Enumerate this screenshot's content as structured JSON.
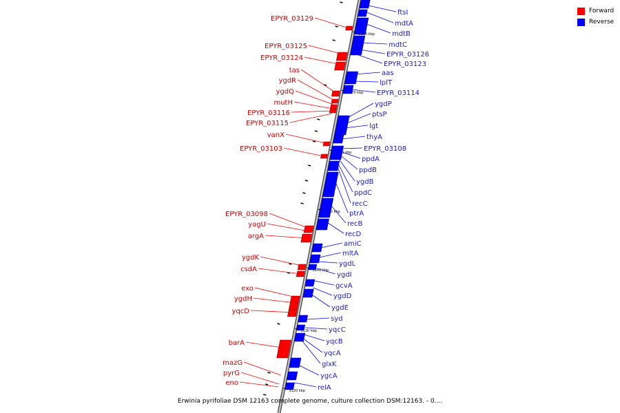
{
  "legend": {
    "forward_label": "Forward",
    "reverse_label": "Reverse",
    "forward_color": "#ff0000",
    "reverse_color": "#0000ff"
  },
  "footer": "Erwinia pyrifoliae DSM 12163 complete genome, culture collection DSM:12163. - 0....",
  "colors": {
    "backbone": "#888888",
    "tick": "#000000",
    "label_forward": "#cc0000",
    "label_reverse": "#1a1acc"
  },
  "kbp_marks": [
    "3180 kbp",
    "3170 kbp",
    "3160 kbp",
    "3150 kbp",
    "3140 kbp",
    "3130 kbp",
    "3120 kbp"
  ],
  "genes": {
    "forward": [
      "EPYR_03129",
      "EPYR_03125",
      "EPYR_03124",
      "tas",
      "ygdR",
      "ygdQ",
      "mutH",
      "EPYR_03116",
      "EPYR_03115",
      "vanX",
      "EPYR_03103",
      "EPYR_03098",
      "yagU",
      "argA",
      "ygdK",
      "csdA",
      "exo",
      "ygdH",
      "yqcD",
      "barA",
      "mazG",
      "pyrG",
      "eno"
    ],
    "reverse": [
      "ftsI",
      "mdtA",
      "mdtB",
      "mdtC",
      "EPYR_03126",
      "EPYR_03123",
      "aas",
      "lplT",
      "EPYR_03114",
      "ygdP",
      "ptsP",
      "lgt",
      "thyA",
      "EPYR_03108",
      "ppdA",
      "ppdB",
      "ygdB",
      "ppdC",
      "recC",
      "ptrA",
      "recB",
      "recD",
      "amiC",
      "mltA",
      "ygdL",
      "ygdI",
      "gcvA",
      "ygdD",
      "ygdE",
      "syd",
      "yqcC",
      "yqcB",
      "yqcA",
      "glxK",
      "ygcA",
      "relA"
    ]
  }
}
